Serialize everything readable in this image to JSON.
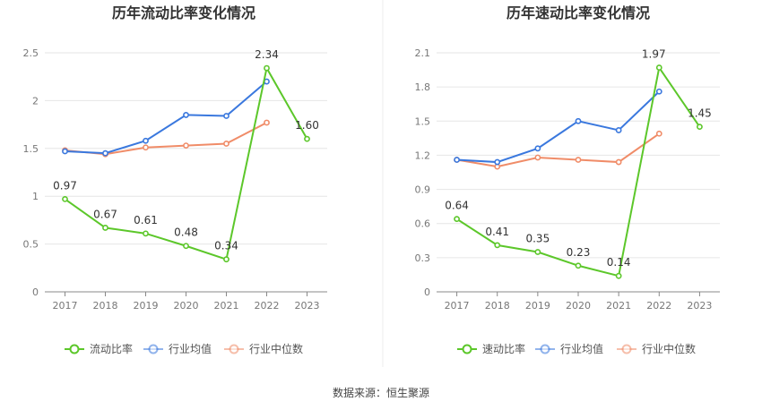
{
  "source": "数据来源：恒生聚源",
  "colors": {
    "company": "#5cc72a",
    "avg": "#3a78de",
    "median": "#f08c68"
  },
  "chart_data": [
    {
      "type": "line",
      "title": "历年流动比率变化情况",
      "categories": [
        "2017",
        "2018",
        "2019",
        "2020",
        "2021",
        "2022",
        "2023"
      ],
      "ylim": [
        0,
        2.5
      ],
      "yticks": [
        "0",
        "0.5",
        "1",
        "1.5",
        "2",
        "2.5"
      ],
      "ytick_values": [
        0,
        0.5,
        1,
        1.5,
        2,
        2.5
      ],
      "grid": true,
      "legend_position": "bottom",
      "series": [
        {
          "name": "流动比率",
          "values": [
            0.97,
            0.67,
            0.61,
            0.48,
            0.34,
            2.34,
            1.6
          ],
          "labels": [
            "0.97",
            "0.67",
            "0.61",
            "0.48",
            "0.34",
            "2.34",
            "1.60"
          ]
        },
        {
          "name": "行业均值",
          "values": [
            1.47,
            1.45,
            1.58,
            1.85,
            1.84,
            2.2,
            null
          ]
        },
        {
          "name": "行业中位数",
          "values": [
            1.48,
            1.44,
            1.51,
            1.53,
            1.55,
            1.77,
            null
          ]
        }
      ]
    },
    {
      "type": "line",
      "title": "历年速动比率变化情况",
      "categories": [
        "2017",
        "2018",
        "2019",
        "2020",
        "2021",
        "2022",
        "2023"
      ],
      "ylim": [
        0,
        2.1
      ],
      "yticks": [
        "0",
        "0.3",
        "0.6",
        "0.9",
        "1.2",
        "1.5",
        "1.8",
        "2.1"
      ],
      "ytick_values": [
        0,
        0.3,
        0.6,
        0.9,
        1.2,
        1.5,
        1.8,
        2.1
      ],
      "grid": true,
      "legend_position": "bottom",
      "series": [
        {
          "name": "速动比率",
          "values": [
            0.64,
            0.41,
            0.35,
            0.23,
            0.14,
            1.97,
            1.45
          ],
          "labels": [
            "0.64",
            "0.41",
            "0.35",
            "0.23",
            "0.14",
            "1.97",
            "1.45"
          ]
        },
        {
          "name": "行业均值",
          "values": [
            1.16,
            1.14,
            1.26,
            1.5,
            1.42,
            1.76,
            null
          ]
        },
        {
          "name": "行业中位数",
          "values": [
            1.16,
            1.1,
            1.18,
            1.16,
            1.14,
            1.39,
            null
          ]
        }
      ]
    }
  ]
}
